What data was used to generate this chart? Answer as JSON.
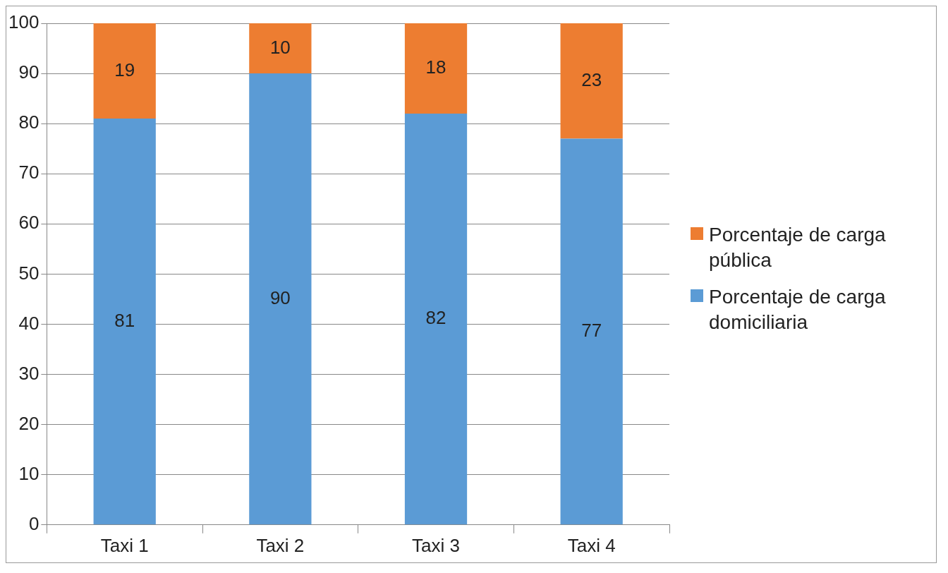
{
  "chart_data": {
    "type": "bar",
    "stacked": true,
    "categories": [
      "Taxi 1",
      "Taxi 2",
      "Taxi 3",
      "Taxi 4"
    ],
    "series": [
      {
        "name": "Porcentaje de carga domiciliaria",
        "color": "#5b9bd5",
        "values": [
          81,
          90,
          82,
          77
        ]
      },
      {
        "name": "Porcentaje de carga pública",
        "color": "#ed7d31",
        "values": [
          19,
          10,
          18,
          23
        ]
      }
    ],
    "ylim": [
      0,
      100
    ],
    "yticks": [
      0,
      10,
      20,
      30,
      40,
      50,
      60,
      70,
      80,
      90,
      100
    ],
    "grid": "y",
    "legend": "right",
    "data_labels": true
  }
}
